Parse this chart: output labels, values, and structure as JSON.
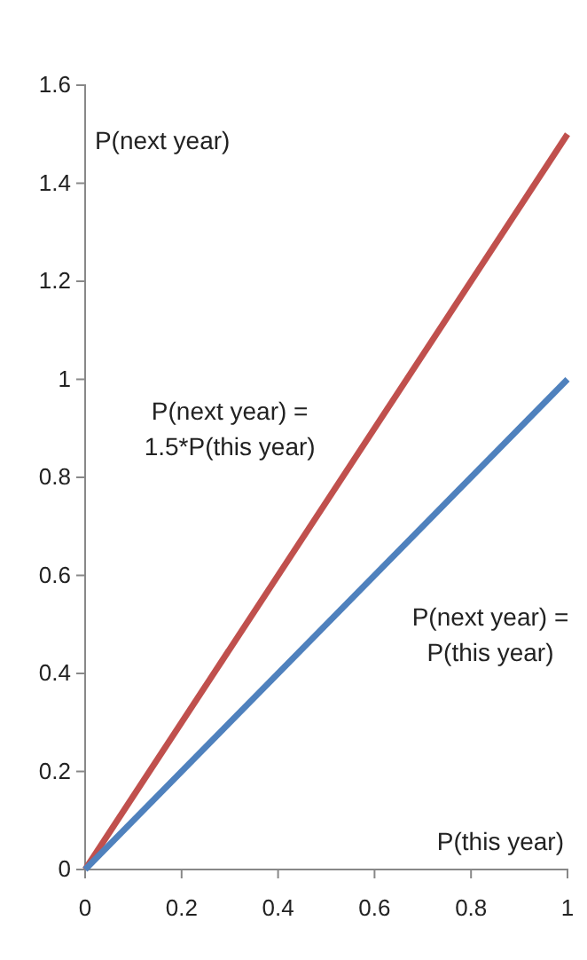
{
  "chart_data": {
    "type": "line",
    "xlabel": "P(this year)",
    "ylabel": "P(next year)",
    "x": [
      0,
      1
    ],
    "series": [
      {
        "name": "P(next year) = 1.5*P(this year)",
        "color": "#c0504d",
        "values": [
          0,
          1.5
        ]
      },
      {
        "name": "P(next year) = P(this year)",
        "color": "#4f81bd",
        "values": [
          0,
          1
        ]
      }
    ],
    "xlim": [
      0,
      1
    ],
    "ylim": [
      0,
      1.6
    ],
    "xticks": [
      0,
      0.2,
      0.4,
      0.6,
      0.8,
      1
    ],
    "yticks": [
      0,
      0.2,
      0.4,
      0.6,
      0.8,
      1,
      1.2,
      1.4,
      1.6
    ],
    "grid": false,
    "marker": "none",
    "line_style": "solid"
  }
}
